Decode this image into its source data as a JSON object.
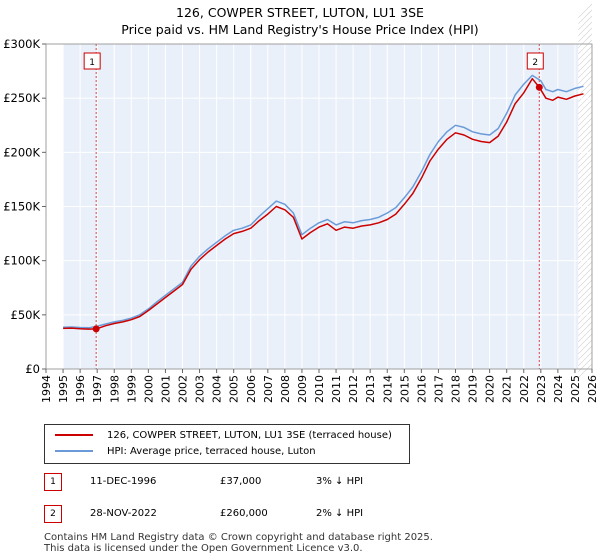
{
  "chart_data": {
    "type": "line",
    "title": "126, COWPER STREET, LUTON, LU1 3SE",
    "subtitle": "Price paid vs. HM Land Registry's House Price Index (HPI)",
    "xlim": [
      1995,
      2026
    ],
    "ylim": [
      0,
      300000
    ],
    "x_ticks": [
      "1994",
      "1995",
      "1996",
      "1997",
      "1998",
      "1999",
      "2000",
      "2001",
      "2002",
      "2003",
      "2004",
      "2005",
      "2006",
      "2007",
      "2008",
      "2009",
      "2010",
      "2011",
      "2012",
      "2013",
      "2014",
      "2015",
      "2016",
      "2017",
      "2018",
      "2019",
      "2020",
      "2021",
      "2022",
      "2023",
      "2024",
      "2025",
      "2026"
    ],
    "y_ticks": [
      {
        "value": 0,
        "label": "£0"
      },
      {
        "value": 50000,
        "label": "£50K"
      },
      {
        "value": 100000,
        "label": "£100K"
      },
      {
        "value": 150000,
        "label": "£150K"
      },
      {
        "value": 200000,
        "label": "£200K"
      },
      {
        "value": 250000,
        "label": "£250K"
      },
      {
        "value": 300000,
        "label": "£300K"
      }
    ],
    "shaded_ranges": [
      [
        1994,
        1995
      ],
      [
        2025.2,
        2026
      ]
    ],
    "series": [
      {
        "name": "126, COWPER STREET, LUTON, LU1 3SE (terraced house)",
        "color": "#cc0000",
        "x": [
          1995.0,
          1995.5,
          1996.0,
          1996.5,
          1996.94,
          1997.5,
          1998.0,
          1998.5,
          1999.0,
          1999.5,
          2000.0,
          2000.5,
          2001.0,
          2001.5,
          2002.0,
          2002.5,
          2003.0,
          2003.5,
          2004.0,
          2004.5,
          2005.0,
          2005.5,
          2006.0,
          2006.5,
          2007.0,
          2007.5,
          2008.0,
          2008.5,
          2009.0,
          2009.5,
          2010.0,
          2010.5,
          2011.0,
          2011.5,
          2012.0,
          2012.5,
          2013.0,
          2013.5,
          2014.0,
          2014.5,
          2015.0,
          2015.5,
          2016.0,
          2016.5,
          2017.0,
          2017.5,
          2018.0,
          2018.5,
          2019.0,
          2019.5,
          2020.0,
          2020.5,
          2021.0,
          2021.5,
          2022.0,
          2022.5,
          2022.91,
          2023.3,
          2023.7,
          2024.0,
          2024.5,
          2025.0,
          2025.5
        ],
        "y": [
          37500,
          37800,
          37200,
          36800,
          37000,
          40000,
          42000,
          43500,
          45500,
          48500,
          54000,
          60000,
          66000,
          72000,
          78000,
          92000,
          101000,
          108000,
          114000,
          120000,
          125000,
          127000,
          130000,
          137000,
          143000,
          150000,
          147000,
          140000,
          120000,
          126000,
          131000,
          134000,
          128000,
          131000,
          130000,
          132000,
          133000,
          135000,
          138000,
          143000,
          152000,
          162000,
          176000,
          192000,
          203000,
          212000,
          218000,
          216000,
          212000,
          210000,
          209000,
          215000,
          228000,
          245000,
          255000,
          268000,
          260000,
          250000,
          248000,
          251000,
          249000,
          252000,
          254000
        ]
      },
      {
        "name": "HPI: Average price, terraced house, Luton",
        "color": "#6a9bd8",
        "x": [
          1995.0,
          1995.5,
          1996.0,
          1996.5,
          1997.0,
          1997.5,
          1998.0,
          1998.5,
          1999.0,
          1999.5,
          2000.0,
          2000.5,
          2001.0,
          2001.5,
          2002.0,
          2002.5,
          2003.0,
          2003.5,
          2004.0,
          2004.5,
          2005.0,
          2005.5,
          2006.0,
          2006.5,
          2007.0,
          2007.5,
          2008.0,
          2008.5,
          2009.0,
          2009.5,
          2010.0,
          2010.5,
          2011.0,
          2011.5,
          2012.0,
          2012.5,
          2013.0,
          2013.5,
          2014.0,
          2014.5,
          2015.0,
          2015.5,
          2016.0,
          2016.5,
          2017.0,
          2017.5,
          2018.0,
          2018.5,
          2019.0,
          2019.5,
          2020.0,
          2020.5,
          2021.0,
          2021.5,
          2022.0,
          2022.5,
          2023.0,
          2023.3,
          2023.7,
          2024.0,
          2024.5,
          2025.0,
          2025.5
        ],
        "y": [
          38500,
          38800,
          38300,
          38000,
          39500,
          41500,
          43500,
          45000,
          47000,
          50000,
          55500,
          62000,
          68000,
          74000,
          80000,
          95000,
          104000,
          111000,
          117000,
          123000,
          128000,
          130000,
          133000,
          141000,
          148000,
          155000,
          152000,
          144000,
          124000,
          130000,
          135000,
          138000,
          133000,
          136000,
          135000,
          137000,
          138000,
          140000,
          144000,
          149000,
          158000,
          168000,
          182000,
          198000,
          210000,
          219000,
          225000,
          223000,
          219000,
          217000,
          216000,
          222000,
          236000,
          253000,
          263000,
          271000,
          266000,
          258000,
          256000,
          258000,
          256000,
          259000,
          261000
        ]
      }
    ],
    "markers": [
      {
        "label": "1",
        "x": 1996.94,
        "y": 37000
      },
      {
        "label": "2",
        "x": 2022.91,
        "y": 260000
      }
    ]
  },
  "legend": {
    "property": "126, COWPER STREET, LUTON, LU1 3SE (terraced house)",
    "hpi": "HPI: Average price, terraced house, Luton"
  },
  "transactions": [
    {
      "num": "1",
      "date": "11-DEC-1996",
      "price": "£37,000",
      "hpi": "3% ↓ HPI"
    },
    {
      "num": "2",
      "date": "28-NOV-2022",
      "price": "£260,000",
      "hpi": "2% ↓ HPI"
    }
  ],
  "footer": {
    "line1": "Contains HM Land Registry data © Crown copyright and database right 2025.",
    "line2": "This data is licensed under the Open Government Licence v3.0."
  }
}
